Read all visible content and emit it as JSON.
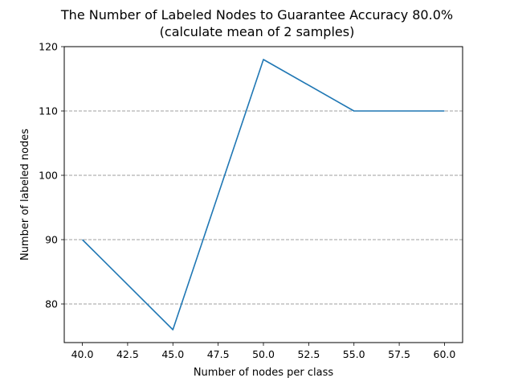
{
  "chart_data": {
    "type": "line",
    "title": "The Number of Labeled Nodes to Guarantee Accuracy 80.0%",
    "subtitle": "(calculate mean of 2 samples)",
    "xlabel": "Number of nodes per class",
    "ylabel": "Number of labeled nodes",
    "x": [
      40,
      45,
      50,
      55,
      60
    ],
    "series": [
      {
        "values": [
          90,
          76,
          118,
          110,
          110
        ]
      }
    ],
    "xlim": [
      39,
      61
    ],
    "ylim": [
      74,
      120
    ],
    "xticks": [
      40.0,
      42.5,
      45.0,
      47.5,
      50.0,
      52.5,
      55.0,
      57.5,
      60.0
    ],
    "xtick_labels": [
      "40.0",
      "42.5",
      "45.0",
      "47.5",
      "50.0",
      "52.5",
      "55.0",
      "57.5",
      "60.0"
    ],
    "yticks": [
      80,
      90,
      100,
      110,
      120
    ],
    "ytick_labels": [
      "80",
      "90",
      "100",
      "110",
      "120"
    ],
    "grid": {
      "axis": "y",
      "style": "dashed"
    },
    "colors": {
      "line": "#1f77b4",
      "grid": "#808080",
      "axes": "#000000"
    }
  }
}
